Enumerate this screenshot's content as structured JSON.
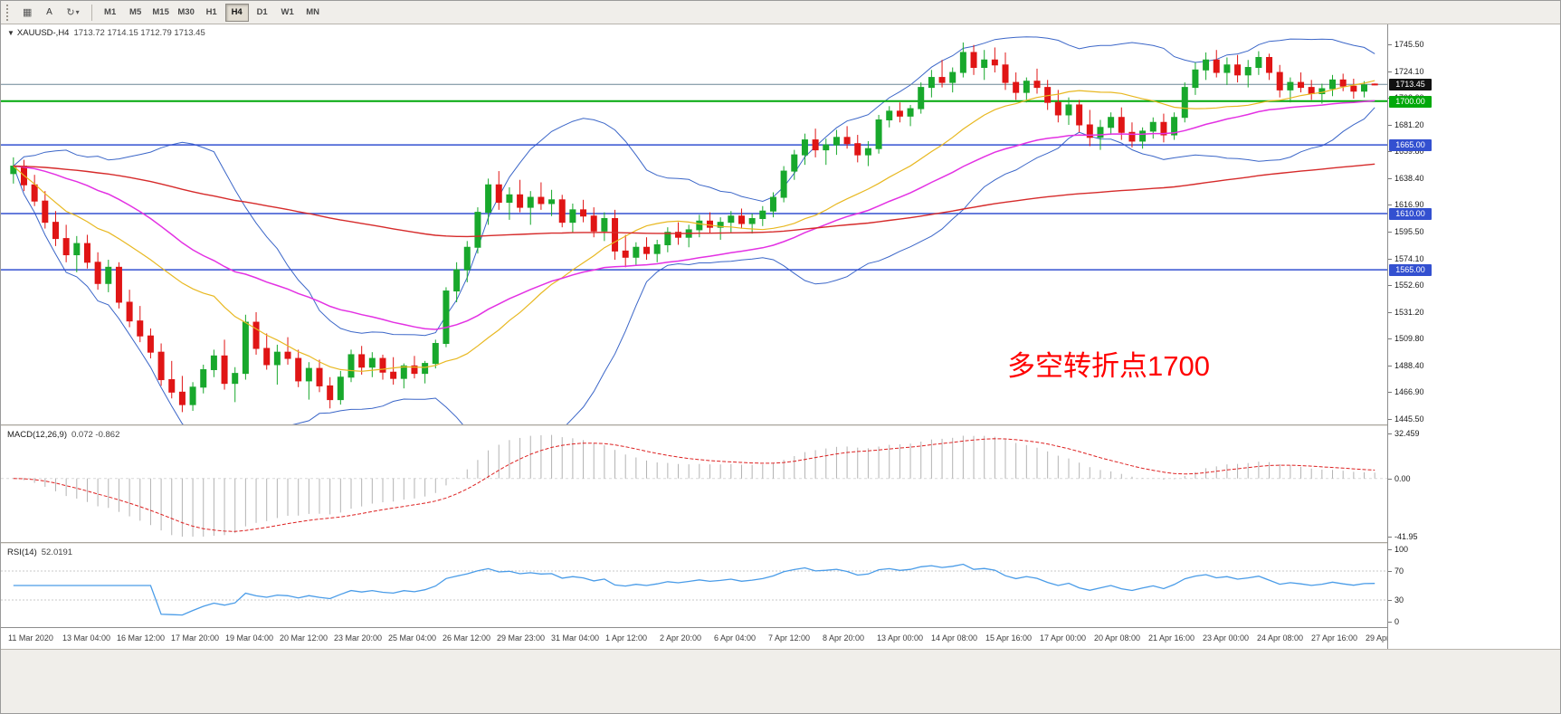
{
  "toolbar": {
    "grid_button": "▦",
    "a_label": "A",
    "cycle_icon": "↻",
    "caret_icon": "▾",
    "timeframes": [
      "M1",
      "M5",
      "M15",
      "M30",
      "H1",
      "H4",
      "D1",
      "W1",
      "MN"
    ],
    "active_timeframe": "H4"
  },
  "chart_header": {
    "dropdown_icon": "▼",
    "symbol": "XAUUSD-,H4",
    "ohlc_text": "1713.72 1714.15 1712.79 1713.45"
  },
  "annotation": {
    "text": "多空转折点1700",
    "color": "#ff0000"
  },
  "price_scale": {
    "min": 1445.5,
    "max": 1745.5,
    "ticks": [
      "1745.50",
      "1724.10",
      "1702.60",
      "1681.20",
      "1659.80",
      "1638.40",
      "1616.90",
      "1595.50",
      "1574.10",
      "1552.60",
      "1531.20",
      "1509.80",
      "1488.40",
      "1466.90",
      "1445.50"
    ]
  },
  "levels": [
    {
      "label": "1713.45",
      "price": 1713.45,
      "line_color": "#6b8695",
      "badge_bg": "#111111",
      "badge_fg": "#ffffff",
      "kind": "current-price",
      "width": 1
    },
    {
      "label": "1700.00",
      "price": 1700.0,
      "line_color": "#00a80a",
      "badge_bg": "#00a80a",
      "badge_fg": "#ffffff",
      "kind": "horizontal-line",
      "width": 2
    },
    {
      "label": "1665.00",
      "price": 1665.0,
      "line_color": "#3350d0",
      "badge_bg": "#3350d0",
      "badge_fg": "#ffffff",
      "kind": "horizontal-line",
      "width": 1.5
    },
    {
      "label": "1610.00",
      "price": 1610.0,
      "line_color": "#3350d0",
      "badge_bg": "#3350d0",
      "badge_fg": "#ffffff",
      "kind": "horizontal-line",
      "width": 1.5
    },
    {
      "label": "1565.00",
      "price": 1565.0,
      "line_color": "#3350d0",
      "badge_bg": "#3350d0",
      "badge_fg": "#ffffff",
      "kind": "horizontal-line",
      "width": 1.5
    }
  ],
  "macd_panel": {
    "label": "MACD(12,26,9)",
    "values": "0.072 -0.862",
    "scale": [
      "32.459",
      "0.00",
      "-41.95"
    ],
    "scale_max": 32.459,
    "scale_min": -41.95,
    "histogram_color": "#b3b3b3",
    "signal_color": "#dd2020"
  },
  "rsi_panel": {
    "label": "RSI(14)",
    "value": "52.0191",
    "scale": [
      "100",
      "70",
      "30",
      "0"
    ],
    "levels": [
      70,
      30
    ],
    "line_color": "#4a9ce8",
    "level_color": "#c9c9c9"
  },
  "time_axis": [
    "11 Mar 2020",
    "13 Mar 04:00",
    "16 Mar 12:00",
    "17 Mar 20:00",
    "19 Mar 04:00",
    "20 Mar 12:00",
    "23 Mar 20:00",
    "25 Mar 04:00",
    "26 Mar 12:00",
    "29 Mar 23:00",
    "31 Mar 04:00",
    "1 Apr 12:00",
    "2 Apr 20:00",
    "6 Apr 04:00",
    "7 Apr 12:00",
    "8 Apr 20:00",
    "13 Apr 00:00",
    "14 Apr 08:00",
    "15 Apr 16:00",
    "17 Apr 00:00",
    "20 Apr 08:00",
    "21 Apr 16:00",
    "23 Apr 00:00",
    "24 Apr 08:00",
    "27 Apr 16:00",
    "29 Apr 00:00"
  ],
  "chart_data": {
    "type": "candlestick",
    "symbol": "XAUUSD",
    "timeframe": "H4",
    "price_min": 1445.5,
    "price_max": 1745.5,
    "current_price": 1713.45,
    "horizontal_levels": [
      1700,
      1665,
      1610,
      1565
    ],
    "overlays": [
      {
        "name": "Bollinger Upper/Lower (20,2)",
        "color": "#3b66c8"
      },
      {
        "name": "SMA 20 (BB middle)",
        "color": "#e8b821"
      },
      {
        "name": "EMA 40",
        "color": "#e331e3"
      },
      {
        "name": "EMA 160",
        "color": "#d62b2b"
      }
    ],
    "up_color": "#18a82c",
    "down_color": "#e01515",
    "series": [
      {
        "name": "OHLC",
        "ohlc": [
          [
            1642,
            1655,
            1634,
            1648
          ],
          [
            1648,
            1653,
            1628,
            1633
          ],
          [
            1633,
            1641,
            1616,
            1620
          ],
          [
            1620,
            1628,
            1598,
            1603
          ],
          [
            1603,
            1612,
            1584,
            1590
          ],
          [
            1590,
            1601,
            1571,
            1577
          ],
          [
            1577,
            1592,
            1563,
            1586
          ],
          [
            1586,
            1593,
            1566,
            1571
          ],
          [
            1571,
            1579,
            1549,
            1554
          ],
          [
            1554,
            1573,
            1547,
            1567
          ],
          [
            1567,
            1571,
            1534,
            1539
          ],
          [
            1539,
            1549,
            1519,
            1524
          ],
          [
            1524,
            1536,
            1507,
            1512
          ],
          [
            1512,
            1518,
            1494,
            1499
          ],
          [
            1499,
            1506,
            1472,
            1477
          ],
          [
            1477,
            1492,
            1462,
            1467
          ],
          [
            1467,
            1480,
            1451,
            1457
          ],
          [
            1457,
            1475,
            1452,
            1471
          ],
          [
            1471,
            1489,
            1466,
            1485
          ],
          [
            1485,
            1501,
            1479,
            1496
          ],
          [
            1496,
            1509,
            1469,
            1474
          ],
          [
            1474,
            1487,
            1459,
            1482
          ],
          [
            1482,
            1529,
            1477,
            1523
          ],
          [
            1523,
            1531,
            1497,
            1502
          ],
          [
            1502,
            1514,
            1485,
            1489
          ],
          [
            1489,
            1505,
            1473,
            1499
          ],
          [
            1499,
            1511,
            1489,
            1494
          ],
          [
            1494,
            1501,
            1471,
            1476
          ],
          [
            1476,
            1491,
            1461,
            1486
          ],
          [
            1486,
            1493,
            1467,
            1472
          ],
          [
            1472,
            1479,
            1454,
            1461
          ],
          [
            1461,
            1484,
            1457,
            1479
          ],
          [
            1479,
            1501,
            1475,
            1497
          ],
          [
            1497,
            1504,
            1481,
            1487
          ],
          [
            1487,
            1499,
            1479,
            1494
          ],
          [
            1494,
            1497,
            1477,
            1483
          ],
          [
            1483,
            1495,
            1473,
            1478
          ],
          [
            1478,
            1490,
            1470,
            1488
          ],
          [
            1488,
            1496,
            1478,
            1482
          ],
          [
            1482,
            1492,
            1474,
            1490
          ],
          [
            1490,
            1509,
            1486,
            1506
          ],
          [
            1506,
            1551,
            1503,
            1548
          ],
          [
            1548,
            1571,
            1539,
            1565
          ],
          [
            1565,
            1588,
            1555,
            1583
          ],
          [
            1583,
            1615,
            1578,
            1611
          ],
          [
            1611,
            1638,
            1601,
            1633
          ],
          [
            1633,
            1644,
            1613,
            1619
          ],
          [
            1619,
            1631,
            1605,
            1625
          ],
          [
            1625,
            1637,
            1611,
            1615
          ],
          [
            1615,
            1628,
            1601,
            1623
          ],
          [
            1623,
            1635,
            1613,
            1618
          ],
          [
            1618,
            1629,
            1608,
            1621
          ],
          [
            1621,
            1625,
            1599,
            1603
          ],
          [
            1603,
            1618,
            1595,
            1613
          ],
          [
            1613,
            1621,
            1603,
            1608
          ],
          [
            1608,
            1615,
            1591,
            1596
          ],
          [
            1596,
            1611,
            1588,
            1606
          ],
          [
            1606,
            1613,
            1573,
            1580
          ],
          [
            1580,
            1593,
            1567,
            1575
          ],
          [
            1575,
            1587,
            1569,
            1583
          ],
          [
            1583,
            1591,
            1573,
            1578
          ],
          [
            1578,
            1589,
            1571,
            1585
          ],
          [
            1585,
            1599,
            1579,
            1595
          ],
          [
            1595,
            1603,
            1585,
            1591
          ],
          [
            1591,
            1601,
            1583,
            1597
          ],
          [
            1597,
            1609,
            1591,
            1604
          ],
          [
            1604,
            1611,
            1594,
            1599
          ],
          [
            1599,
            1607,
            1589,
            1603
          ],
          [
            1603,
            1612,
            1595,
            1608
          ],
          [
            1608,
            1614,
            1598,
            1602
          ],
          [
            1602,
            1610,
            1594,
            1606
          ],
          [
            1606,
            1616,
            1600,
            1612
          ],
          [
            1612,
            1627,
            1607,
            1623
          ],
          [
            1623,
            1648,
            1619,
            1644
          ],
          [
            1644,
            1661,
            1637,
            1657
          ],
          [
            1657,
            1674,
            1649,
            1669
          ],
          [
            1669,
            1678,
            1655,
            1661
          ],
          [
            1661,
            1670,
            1649,
            1665
          ],
          [
            1665,
            1677,
            1657,
            1671
          ],
          [
            1671,
            1680,
            1662,
            1666
          ],
          [
            1666,
            1673,
            1651,
            1657
          ],
          [
            1657,
            1668,
            1648,
            1662
          ],
          [
            1662,
            1689,
            1658,
            1685
          ],
          [
            1685,
            1696,
            1679,
            1692
          ],
          [
            1692,
            1699,
            1683,
            1688
          ],
          [
            1688,
            1697,
            1680,
            1694
          ],
          [
            1694,
            1715,
            1690,
            1711
          ],
          [
            1711,
            1725,
            1703,
            1719
          ],
          [
            1719,
            1733,
            1711,
            1715
          ],
          [
            1715,
            1727,
            1707,
            1723
          ],
          [
            1723,
            1747,
            1719,
            1739
          ],
          [
            1739,
            1745,
            1721,
            1727
          ],
          [
            1727,
            1741,
            1717,
            1733
          ],
          [
            1733,
            1743,
            1723,
            1729
          ],
          [
            1729,
            1739,
            1709,
            1715
          ],
          [
            1715,
            1723,
            1701,
            1707
          ],
          [
            1707,
            1719,
            1699,
            1716
          ],
          [
            1716,
            1726,
            1706,
            1711
          ],
          [
            1711,
            1717,
            1693,
            1699
          ],
          [
            1699,
            1709,
            1683,
            1689
          ],
          [
            1689,
            1703,
            1681,
            1697
          ],
          [
            1697,
            1701,
            1675,
            1681
          ],
          [
            1681,
            1693,
            1664,
            1671
          ],
          [
            1671,
            1685,
            1661,
            1679
          ],
          [
            1679,
            1691,
            1673,
            1687
          ],
          [
            1687,
            1695,
            1669,
            1675
          ],
          [
            1675,
            1683,
            1663,
            1668
          ],
          [
            1668,
            1679,
            1662,
            1676
          ],
          [
            1676,
            1687,
            1670,
            1683
          ],
          [
            1683,
            1690,
            1667,
            1673
          ],
          [
            1673,
            1691,
            1669,
            1687
          ],
          [
            1687,
            1715,
            1683,
            1711
          ],
          [
            1711,
            1731,
            1705,
            1725
          ],
          [
            1725,
            1739,
            1717,
            1733
          ],
          [
            1733,
            1741,
            1719,
            1723
          ],
          [
            1723,
            1735,
            1713,
            1729
          ],
          [
            1729,
            1737,
            1715,
            1721
          ],
          [
            1721,
            1733,
            1711,
            1727
          ],
          [
            1727,
            1740,
            1721,
            1735
          ],
          [
            1735,
            1738,
            1717,
            1723
          ],
          [
            1723,
            1729,
            1703,
            1709
          ],
          [
            1709,
            1719,
            1699,
            1715
          ],
          [
            1715,
            1723,
            1707,
            1711
          ],
          [
            1711,
            1717,
            1701,
            1706
          ],
          [
            1706,
            1714,
            1698,
            1710
          ],
          [
            1710,
            1721,
            1704,
            1717
          ],
          [
            1717,
            1722,
            1708,
            1712
          ],
          [
            1712,
            1718,
            1702,
            1708
          ],
          [
            1708,
            1716,
            1703,
            1713
          ],
          [
            1713.72,
            1714.15,
            1712.79,
            1713.45
          ]
        ]
      }
    ]
  }
}
